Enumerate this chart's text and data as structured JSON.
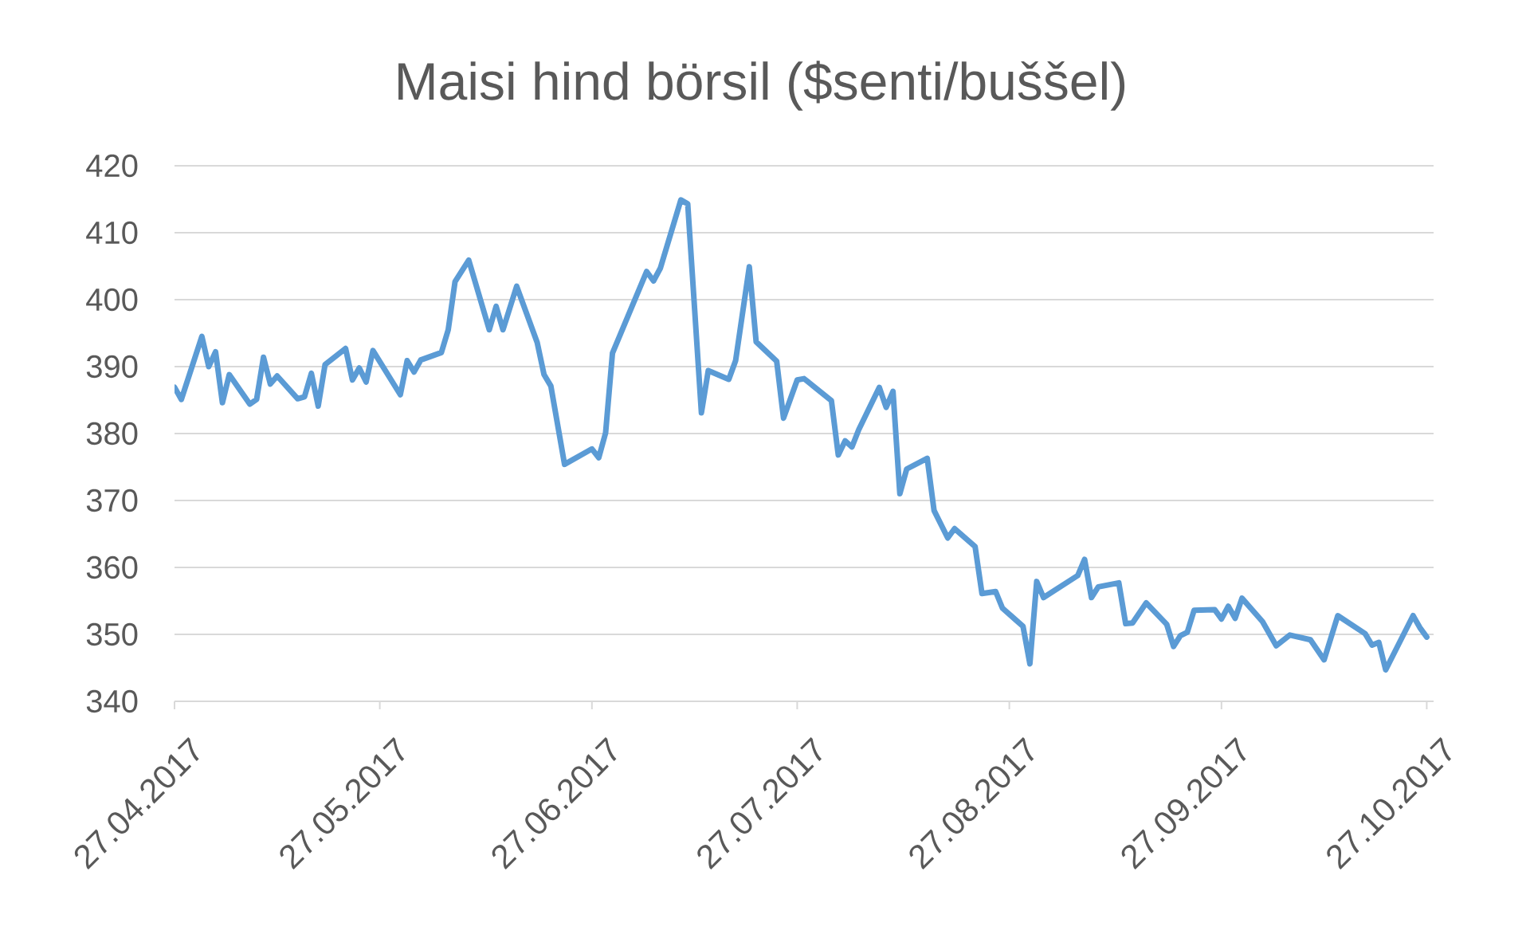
{
  "chart_data": {
    "type": "line",
    "title": "Maisi hind börsil ($senti/buššel)",
    "x": [
      "2017-04-27",
      "2017-04-28",
      "2017-05-01",
      "2017-05-02",
      "2017-05-03",
      "2017-05-04",
      "2017-05-05",
      "2017-05-08",
      "2017-05-09",
      "2017-05-10",
      "2017-05-11",
      "2017-05-12",
      "2017-05-15",
      "2017-05-16",
      "2017-05-17",
      "2017-05-18",
      "2017-05-19",
      "2017-05-22",
      "2017-05-23",
      "2017-05-24",
      "2017-05-25",
      "2017-05-26",
      "2017-05-30",
      "2017-05-31",
      "2017-06-01",
      "2017-06-02",
      "2017-06-05",
      "2017-06-06",
      "2017-06-07",
      "2017-06-09",
      "2017-06-12",
      "2017-06-13",
      "2017-06-14",
      "2017-06-16",
      "2017-06-19",
      "2017-06-20",
      "2017-06-21",
      "2017-06-23",
      "2017-06-27",
      "2017-06-28",
      "2017-06-29",
      "2017-06-30",
      "2017-07-05",
      "2017-07-06",
      "2017-07-07",
      "2017-07-10",
      "2017-07-11",
      "2017-07-13",
      "2017-07-14",
      "2017-07-17",
      "2017-07-18",
      "2017-07-20",
      "2017-07-21",
      "2017-07-24",
      "2017-07-25",
      "2017-07-27",
      "2017-07-28",
      "2017-08-01",
      "2017-08-02",
      "2017-08-03",
      "2017-08-04",
      "2017-08-05",
      "2017-08-08",
      "2017-08-09",
      "2017-08-10",
      "2017-08-11",
      "2017-08-12",
      "2017-08-15",
      "2017-08-16",
      "2017-08-18",
      "2017-08-19",
      "2017-08-22",
      "2017-08-23",
      "2017-08-25",
      "2017-08-26",
      "2017-08-29",
      "2017-08-30",
      "2017-08-31",
      "2017-09-01",
      "2017-09-06",
      "2017-09-07",
      "2017-09-08",
      "2017-09-09",
      "2017-09-12",
      "2017-09-13",
      "2017-09-14",
      "2017-09-16",
      "2017-09-19",
      "2017-09-20",
      "2017-09-21",
      "2017-09-22",
      "2017-09-23",
      "2017-09-26",
      "2017-09-27",
      "2017-09-28",
      "2017-09-29",
      "2017-09-30",
      "2017-10-03",
      "2017-10-05",
      "2017-10-07",
      "2017-10-10",
      "2017-10-12",
      "2017-10-14",
      "2017-10-18",
      "2017-10-19",
      "2017-10-20",
      "2017-10-21",
      "2017-10-25",
      "2017-10-26",
      "2017-10-27"
    ],
    "values": [
      386.9,
      385.1,
      394.5,
      390.0,
      392.2,
      384.6,
      388.8,
      384.4,
      385.1,
      391.4,
      387.4,
      388.6,
      385.2,
      385.5,
      389.0,
      384.1,
      390.3,
      392.7,
      388.0,
      389.8,
      387.7,
      392.4,
      385.8,
      390.9,
      389.2,
      391.0,
      392.1,
      395.5,
      402.7,
      405.9,
      395.5,
      399.0,
      395.5,
      402.0,
      393.6,
      388.8,
      387.1,
      375.4,
      377.7,
      376.4,
      380.1,
      392.0,
      404.2,
      402.8,
      404.7,
      414.9,
      414.3,
      383.1,
      389.4,
      388.1,
      390.9,
      404.9,
      393.7,
      390.8,
      382.3,
      388.0,
      388.2,
      384.9,
      376.8,
      378.9,
      378.0,
      380.6,
      386.9,
      383.9,
      386.3,
      371.0,
      374.7,
      376.3,
      368.5,
      364.4,
      365.8,
      363.1,
      356.1,
      356.4,
      353.9,
      351.2,
      345.6,
      357.9,
      355.5,
      358.8,
      361.2,
      355.5,
      357.1,
      357.7,
      351.6,
      351.7,
      354.7,
      351.5,
      348.2,
      349.8,
      350.3,
      353.6,
      353.7,
      352.3,
      354.2,
      352.4,
      355.4,
      351.9,
      348.3,
      349.9,
      349.2,
      346.2,
      352.8,
      350.1,
      348.4,
      348.8,
      344.7,
      352.8,
      351.0,
      349.6
    ],
    "color": "#5b9bd5",
    "xlim": [
      "2017-04-27",
      "2017-10-28"
    ],
    "xticks": [
      {
        "value": "2017-04-27",
        "label": "27.04.2017"
      },
      {
        "value": "2017-05-27",
        "label": "27.05.2017"
      },
      {
        "value": "2017-06-27",
        "label": "27.06.2017"
      },
      {
        "value": "2017-07-27",
        "label": "27.07.2017"
      },
      {
        "value": "2017-08-27",
        "label": "27.08.2017"
      },
      {
        "value": "2017-09-27",
        "label": "27.09.2017"
      },
      {
        "value": "2017-10-27",
        "label": "27.10.2017"
      }
    ],
    "ylim": [
      340,
      420
    ],
    "yticks": [
      340,
      350,
      360,
      370,
      380,
      390,
      400,
      410,
      420
    ],
    "grid": "y"
  }
}
